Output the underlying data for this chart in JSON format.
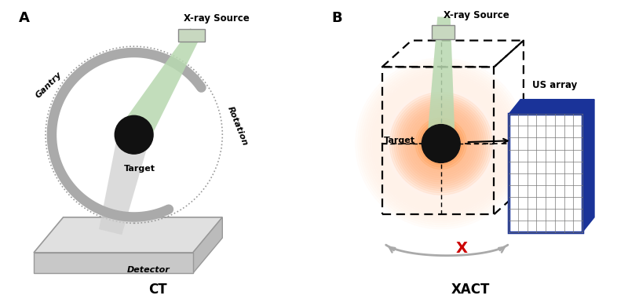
{
  "bg_color": "#ffffff",
  "panel_A_label": "A",
  "panel_B_label": "B",
  "panel_A_title": "CT",
  "panel_B_title": "XACT",
  "label_xray_source": "X-ray Source",
  "label_gantry": "Gantry",
  "label_rotation": "Rotation",
  "label_target": "Target",
  "label_detector": "Detector",
  "label_us_array": "US array",
  "label_x": "X",
  "xray_beam_green": "#b8d8b0",
  "xray_beam_gray": "#d0d0d0",
  "gantry_color": "#aaaaaa",
  "detector_top": "#e0e0e0",
  "detector_side": "#bbbbbb",
  "detector_front": "#c8c8c8",
  "target_color": "#111111",
  "arrow_color": "#888888",
  "us_array_color": "#1a3399",
  "glow_color_inner": "#ff4400",
  "glow_color_outer": "#ffffff",
  "red_x_color": "#cc0000",
  "source_block_face": "#c8d8c0",
  "source_block_edge": "#888888"
}
